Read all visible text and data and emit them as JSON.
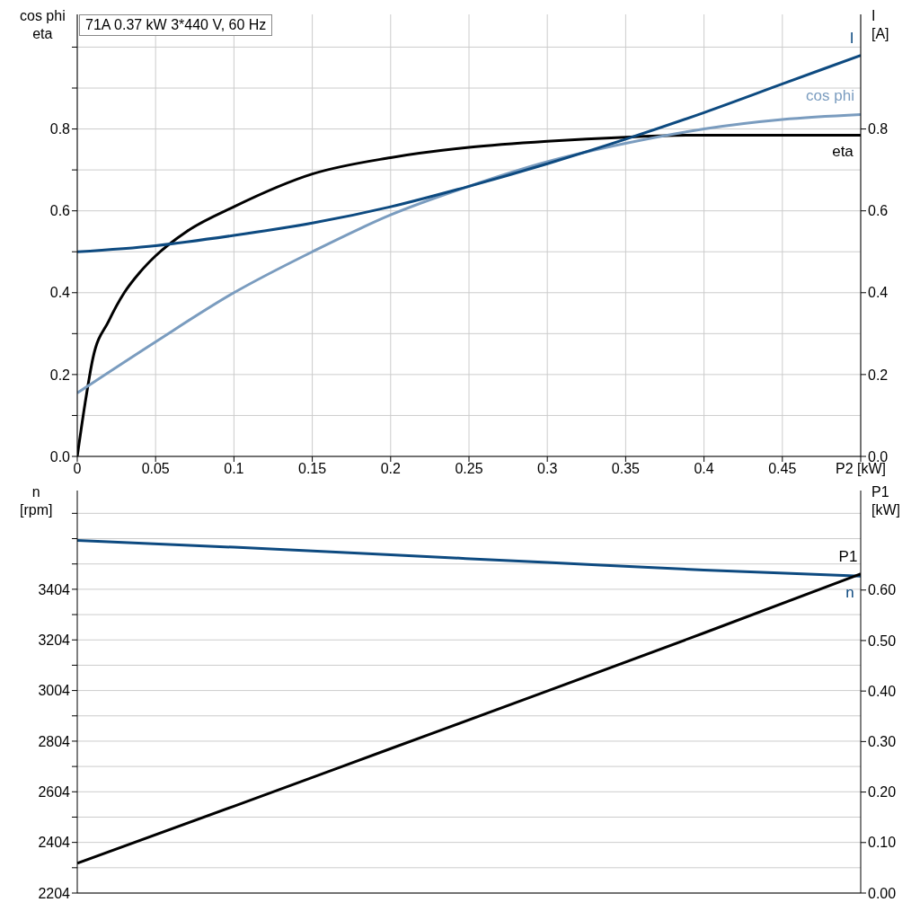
{
  "chart_data": [
    {
      "type": "line",
      "title": "71A   0.37 kW   3*440 V, 60 Hz",
      "ylabel": "cos phi\neta",
      "y2label": "I\n[A]",
      "grid": true,
      "line_style": "solid",
      "xlim": [
        0,
        0.5
      ],
      "xticks": [
        0,
        0.05,
        0.1,
        0.15,
        0.2,
        0.25,
        0.3,
        0.35,
        0.4,
        0.45,
        {
          "value": 0.5,
          "label": "P2 [kW]"
        }
      ],
      "ylim": [
        0,
        1.08
      ],
      "yticks": [
        {
          "value": 0,
          "label": "0.0"
        },
        {
          "value": 0.1,
          "label": null
        },
        0.2,
        {
          "value": 0.3,
          "label": null
        },
        0.4,
        {
          "value": 0.5,
          "label": null
        },
        0.6,
        {
          "value": 0.7,
          "label": null
        },
        0.8,
        {
          "value": 0.9,
          "label": null
        },
        {
          "value": 1,
          "label": null
        }
      ],
      "y2lim": [
        0,
        1.08
      ],
      "y2ticks": [
        {
          "value": 0,
          "label": "0.0"
        },
        0.2,
        0.4,
        0.6,
        0.8
      ],
      "series": [
        {
          "name": "eta",
          "color": "#000000",
          "x": [
            0,
            0.005,
            0.01,
            0.02,
            0.03,
            0.04,
            0.05,
            0.07,
            0.1,
            0.15,
            0.2,
            0.25,
            0.3,
            0.35,
            0.4,
            0.45,
            0.5
          ],
          "values": [
            0,
            0.13,
            0.24,
            0.33,
            0.4,
            0.45,
            0.49,
            0.55,
            0.61,
            0.69,
            0.73,
            0.755,
            0.77,
            0.78,
            0.785,
            0.785,
            0.785
          ]
        },
        {
          "name": "cos phi",
          "color": "#7a9cbf",
          "x": [
            0,
            0.05,
            0.1,
            0.15,
            0.2,
            0.25,
            0.3,
            0.35,
            0.4,
            0.45,
            0.5
          ],
          "values": [
            0.155,
            0.28,
            0.4,
            0.5,
            0.59,
            0.66,
            0.72,
            0.765,
            0.8,
            0.823,
            0.835
          ]
        },
        {
          "name": "I",
          "color": "#0d4a80",
          "axis": "y2",
          "x": [
            0,
            0.05,
            0.1,
            0.15,
            0.2,
            0.25,
            0.3,
            0.35,
            0.4,
            0.45,
            0.5
          ],
          "values": [
            0.5,
            0.515,
            0.54,
            0.57,
            0.61,
            0.66,
            0.715,
            0.775,
            0.84,
            0.91,
            0.98
          ]
        }
      ]
    },
    {
      "type": "line",
      "ylabel": "n\n[rpm]",
      "y2label": "P1\n[kW]",
      "grid": true,
      "line_style": "solid",
      "tick_labels": "y",
      "xlim": [
        0,
        0.5
      ],
      "xticks": [
        0,
        0.05,
        0.1,
        0.15,
        0.2,
        0.25,
        0.3,
        0.35,
        0.4,
        0.45,
        0.5
      ],
      "ylim": [
        2204,
        3794
      ],
      "yticks": [
        2204,
        {
          "value": 2304,
          "label": null
        },
        2404,
        {
          "value": 2504,
          "label": null
        },
        2604,
        {
          "value": 2704,
          "label": null
        },
        2804,
        {
          "value": 2904,
          "label": null
        },
        3004,
        {
          "value": 3104,
          "label": null
        },
        3204,
        {
          "value": 3304,
          "label": null
        },
        3404,
        {
          "value": 3504,
          "label": null
        },
        {
          "value": 3604,
          "label": null
        },
        {
          "value": 3704,
          "label": null
        }
      ],
      "y2lim": [
        0,
        0.797
      ],
      "y2ticks": [
        {
          "value": 0,
          "label": "0.00"
        },
        {
          "value": 0.1,
          "label": "0.10"
        },
        {
          "value": 0.2,
          "label": "0.20"
        },
        {
          "value": 0.3,
          "label": "0.30"
        },
        {
          "value": 0.4,
          "label": "0.40"
        },
        {
          "value": 0.5,
          "label": "0.50"
        },
        {
          "value": 0.6,
          "label": "0.60"
        }
      ],
      "series": [
        {
          "name": "n",
          "color": "#0d4a80",
          "x": [
            0,
            0.1,
            0.2,
            0.3,
            0.4,
            0.5
          ],
          "values": [
            3597,
            3570,
            3540,
            3510,
            3480,
            3456
          ]
        },
        {
          "name": "P1",
          "color": "#000000",
          "axis": "y2",
          "x": [
            0,
            0.1,
            0.2,
            0.3,
            0.4,
            0.5
          ],
          "values": [
            0.059,
            0.172,
            0.286,
            0.4,
            0.515,
            0.632
          ]
        }
      ]
    }
  ]
}
